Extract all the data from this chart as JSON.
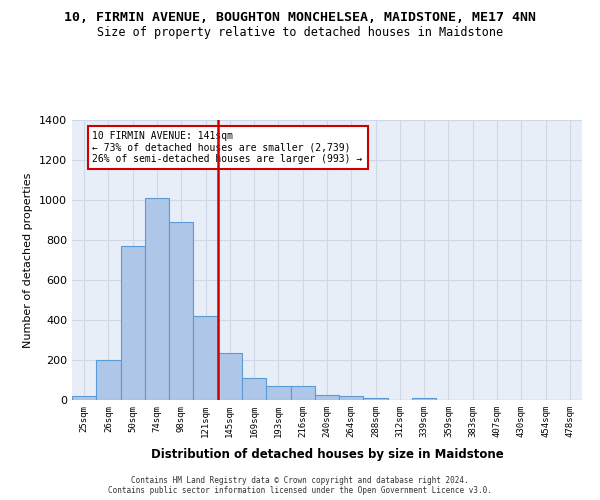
{
  "title": "10, FIRMIN AVENUE, BOUGHTON MONCHELSEA, MAIDSTONE, ME17 4NN",
  "subtitle": "Size of property relative to detached houses in Maidstone",
  "xlabel": "Distribution of detached houses by size in Maidstone",
  "ylabel": "Number of detached properties",
  "bar_values": [
    20,
    200,
    770,
    1010,
    890,
    420,
    235,
    110,
    70,
    70,
    25,
    20,
    10,
    0,
    10,
    0,
    0,
    0,
    0,
    0,
    0
  ],
  "bar_color": "#aec6e8",
  "bar_edge_color": "#5b9bd5",
  "vline_color": "#cc0000",
  "vline_pos": 5.5,
  "annotation_text": "10 FIRMIN AVENUE: 141sqm\n← 73% of detached houses are smaller (2,739)\n26% of semi-detached houses are larger (993) →",
  "annotation_box_color": "#ffffff",
  "annotation_box_edge": "#cc0000",
  "ylim": [
    0,
    1400
  ],
  "yticks": [
    0,
    200,
    400,
    600,
    800,
    1000,
    1200,
    1400
  ],
  "grid_color": "#d0d8e8",
  "bg_color": "#e8eef8",
  "footer_text": "Contains HM Land Registry data © Crown copyright and database right 2024.\nContains public sector information licensed under the Open Government Licence v3.0.",
  "bar_labels": [
    "25sqm",
    "26sqm",
    "50sqm",
    "74sqm",
    "98sqm",
    "121sqm",
    "145sqm",
    "169sqm",
    "193sqm",
    "216sqm",
    "240sqm",
    "264sqm",
    "288sqm",
    "312sqm",
    "339sqm",
    "359sqm",
    "383sqm",
    "407sqm",
    "430sqm",
    "454sqm",
    "478sqm"
  ]
}
